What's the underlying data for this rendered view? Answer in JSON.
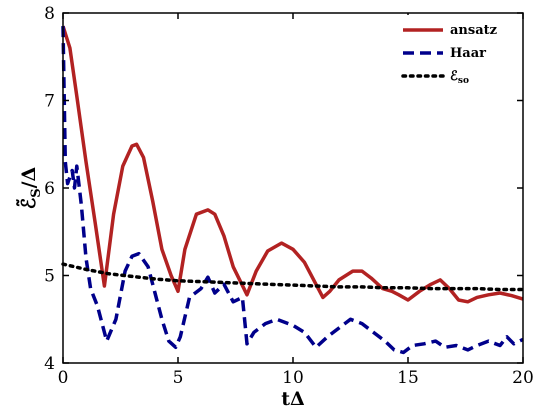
{
  "chart_data": {
    "type": "line",
    "xlabel": "tΔ",
    "ylabel_main": "ℰ̃",
    "ylabel_sub": "S",
    "ylabel_tail": "/Δ",
    "xlim": [
      0,
      20
    ],
    "ylim": [
      4,
      8
    ],
    "xticks": [
      0,
      5,
      10,
      15,
      20
    ],
    "yticks": [
      4,
      5,
      6,
      7,
      8
    ],
    "grid": false,
    "legend_position": "top-right",
    "series": [
      {
        "name": "ansatz",
        "color": "#b22222",
        "dash": "solid",
        "x": [
          0,
          0.3,
          0.6,
          1.0,
          1.4,
          1.8,
          2.2,
          2.6,
          3.0,
          3.2,
          3.5,
          3.9,
          4.3,
          4.7,
          5.0,
          5.3,
          5.8,
          6.3,
          6.6,
          7.0,
          7.4,
          8.0,
          8.4,
          8.9,
          9.5,
          10.0,
          10.5,
          11.0,
          11.3,
          11.6,
          12.0,
          12.6,
          13.0,
          13.4,
          13.9,
          14.3,
          14.6,
          15.0,
          15.5,
          16.0,
          16.4,
          16.8,
          17.2,
          17.6,
          18.0,
          18.5,
          19.0,
          19.5,
          20.0
        ],
        "y": [
          7.85,
          7.6,
          7.05,
          6.3,
          5.6,
          4.88,
          5.7,
          6.25,
          6.48,
          6.5,
          6.35,
          5.85,
          5.3,
          5.0,
          4.82,
          5.3,
          5.7,
          5.75,
          5.7,
          5.45,
          5.1,
          4.78,
          5.05,
          5.28,
          5.37,
          5.3,
          5.15,
          4.9,
          4.75,
          4.82,
          4.95,
          5.05,
          5.05,
          4.97,
          4.85,
          4.82,
          4.78,
          4.72,
          4.82,
          4.9,
          4.95,
          4.85,
          4.72,
          4.7,
          4.75,
          4.78,
          4.8,
          4.77,
          4.73
        ]
      },
      {
        "name": "Haar",
        "color": "#00008b",
        "dash": "dashed",
        "x": [
          0,
          0.1,
          0.2,
          0.4,
          0.5,
          0.6,
          0.8,
          1.0,
          1.2,
          1.5,
          1.9,
          2.3,
          2.7,
          3.0,
          3.3,
          3.7,
          4.0,
          4.3,
          4.6,
          4.9,
          5.1,
          5.5,
          6.0,
          6.3,
          6.6,
          7.0,
          7.4,
          7.8,
          8.0,
          8.3,
          8.8,
          9.3,
          10.0,
          10.5,
          11.0,
          11.5,
          12.0,
          12.5,
          13.0,
          13.5,
          14.0,
          14.4,
          14.8,
          15.2,
          15.7,
          16.2,
          16.6,
          17.1,
          17.6,
          18.0,
          18.5,
          19.0,
          19.3,
          19.6,
          20.0
        ],
        "y": [
          7.85,
          6.3,
          6.05,
          6.2,
          6.0,
          6.25,
          5.8,
          5.2,
          4.85,
          4.65,
          4.25,
          4.5,
          5.05,
          5.22,
          5.25,
          5.1,
          4.8,
          4.5,
          4.25,
          4.18,
          4.3,
          4.75,
          4.85,
          4.98,
          4.8,
          4.9,
          4.7,
          4.75,
          4.22,
          4.35,
          4.45,
          4.5,
          4.43,
          4.35,
          4.18,
          4.3,
          4.4,
          4.5,
          4.45,
          4.35,
          4.25,
          4.15,
          4.12,
          4.2,
          4.22,
          4.25,
          4.18,
          4.2,
          4.15,
          4.2,
          4.25,
          4.2,
          4.3,
          4.22,
          4.27
        ]
      },
      {
        "name": "ℰ",
        "name_sub": "so",
        "color": "#000000",
        "dash": "dotted",
        "x": [
          0,
          1,
          2,
          3,
          4,
          5,
          6,
          7,
          8,
          9,
          10,
          11,
          12,
          13,
          14,
          15,
          16,
          17,
          18,
          19,
          20
        ],
        "y": [
          5.13,
          5.07,
          5.02,
          4.99,
          4.96,
          4.94,
          4.93,
          4.92,
          4.91,
          4.9,
          4.89,
          4.88,
          4.87,
          4.87,
          4.86,
          4.86,
          4.85,
          4.85,
          4.85,
          4.84,
          4.84
        ]
      }
    ]
  }
}
